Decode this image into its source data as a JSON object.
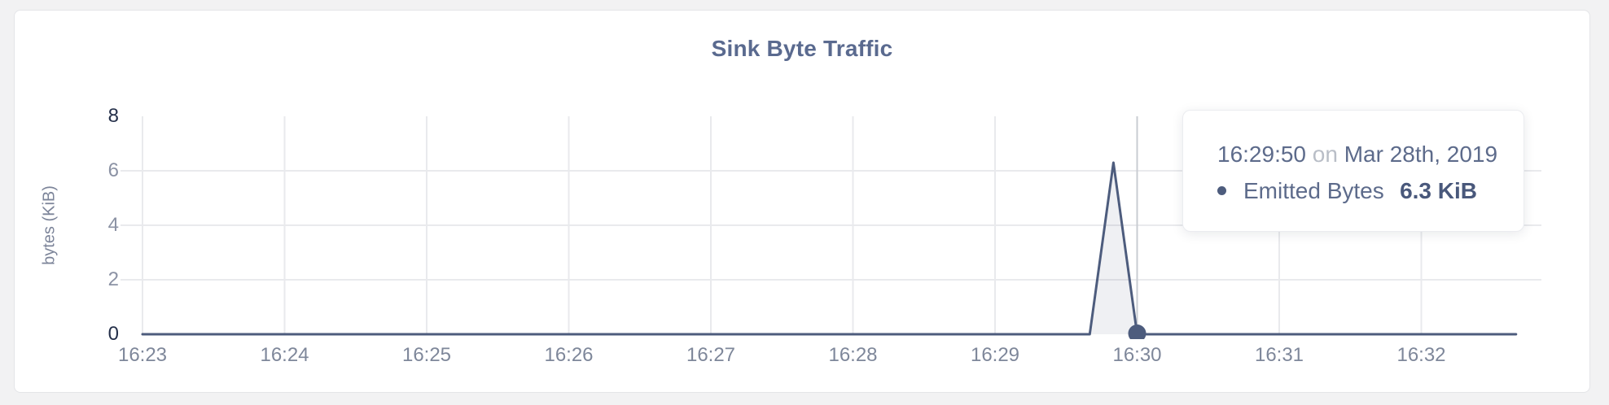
{
  "chart_data": {
    "type": "area",
    "title": "Sink Byte Traffic",
    "xlabel": "",
    "ylabel": "bytes (KiB)",
    "ylim": [
      0,
      8
    ],
    "y_ticks": [
      8,
      6,
      4,
      2,
      0
    ],
    "y_gridlines": [
      6,
      4,
      2
    ],
    "x_tick_labels": [
      "16:23",
      "16:24",
      "16:25",
      "16:26",
      "16:27",
      "16:28",
      "16:29",
      "16:30",
      "16:31",
      "16:32"
    ],
    "x_domain": [
      "16:23:00",
      "16:32:40"
    ],
    "grid": true,
    "legend_position": "tooltip-overlay",
    "series": [
      {
        "name": "Emitted Bytes",
        "unit": "KiB",
        "points": [
          [
            "16:23:00",
            0
          ],
          [
            "16:29:40",
            0
          ],
          [
            "16:29:50",
            6.3
          ],
          [
            "16:30:00",
            0
          ],
          [
            "16:32:40",
            0
          ]
        ]
      }
    ],
    "highlight": {
      "crosshair_time": "16:30:00",
      "marker": {
        "time": "16:30:00",
        "value": 0
      }
    }
  },
  "tooltip": {
    "time": "16:29:50",
    "connector": "on",
    "date": "Mar 28th, 2019",
    "series_name": "Emitted Bytes",
    "value": "6.3 KiB"
  },
  "colors": {
    "line": "#4d5c7d",
    "area_fill": "rgba(77,92,125,0.09)",
    "marker": "#4d5c7d",
    "crosshair": "#c9ccd2",
    "grid": "#e9eaed",
    "y_tick_edge": "#25304a",
    "y_tick_mid": "#8b92a4",
    "x_tick": "#7e879a",
    "title": "#5a6a8f"
  }
}
